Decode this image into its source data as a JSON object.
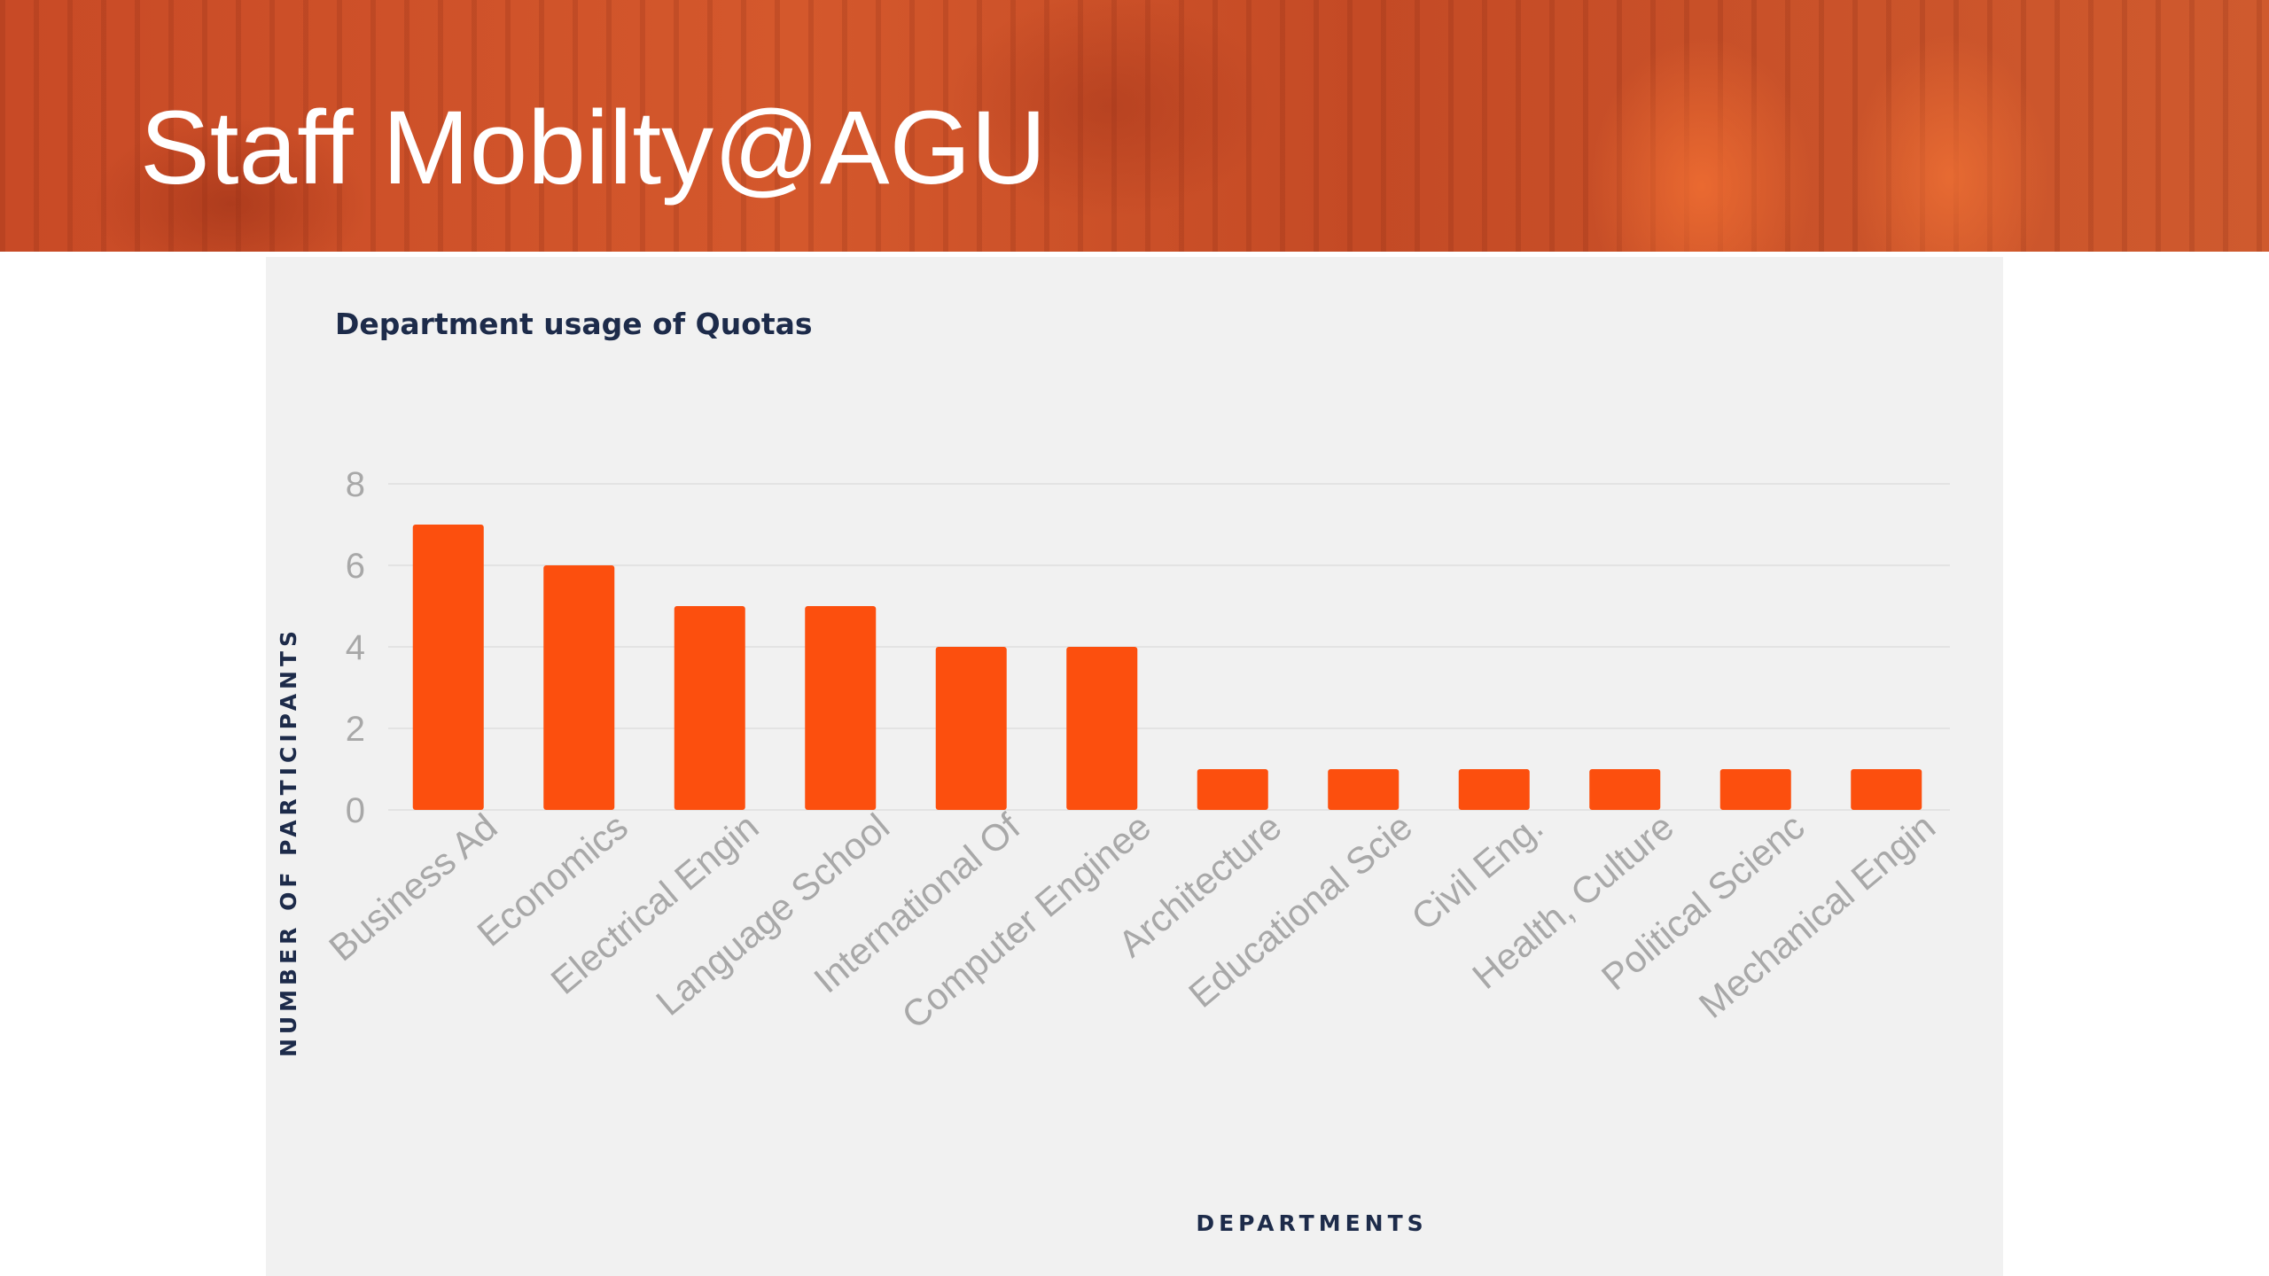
{
  "header": {
    "title": "Staff Mobilty@AGU"
  },
  "colors": {
    "banner": "#cc5129",
    "bar": "#fc4f0e",
    "panel": "#f1f1f1",
    "text_dark": "#1d2b4a",
    "tick": "#a8a8a8"
  },
  "chart_data": {
    "type": "bar",
    "title": "Department usage of Quotas",
    "xlabel": "DEPARTMENTS",
    "ylabel": "NUMBER OF PARTICIPANTS",
    "ylim": [
      0,
      8
    ],
    "yticks": [
      0,
      2,
      4,
      6,
      8
    ],
    "grid": true,
    "categories": [
      "Business Ad",
      "Economics",
      "Electrical Engin",
      "Language School",
      "International Of",
      "Computer Enginee",
      "Architecture",
      "Educational Scie",
      "Civil Eng.",
      "Health, Culture",
      "Political Scienc",
      "Mechanical Engin"
    ],
    "values": [
      7,
      6,
      5,
      5,
      4,
      4,
      1,
      1,
      1,
      1,
      1,
      1
    ]
  }
}
